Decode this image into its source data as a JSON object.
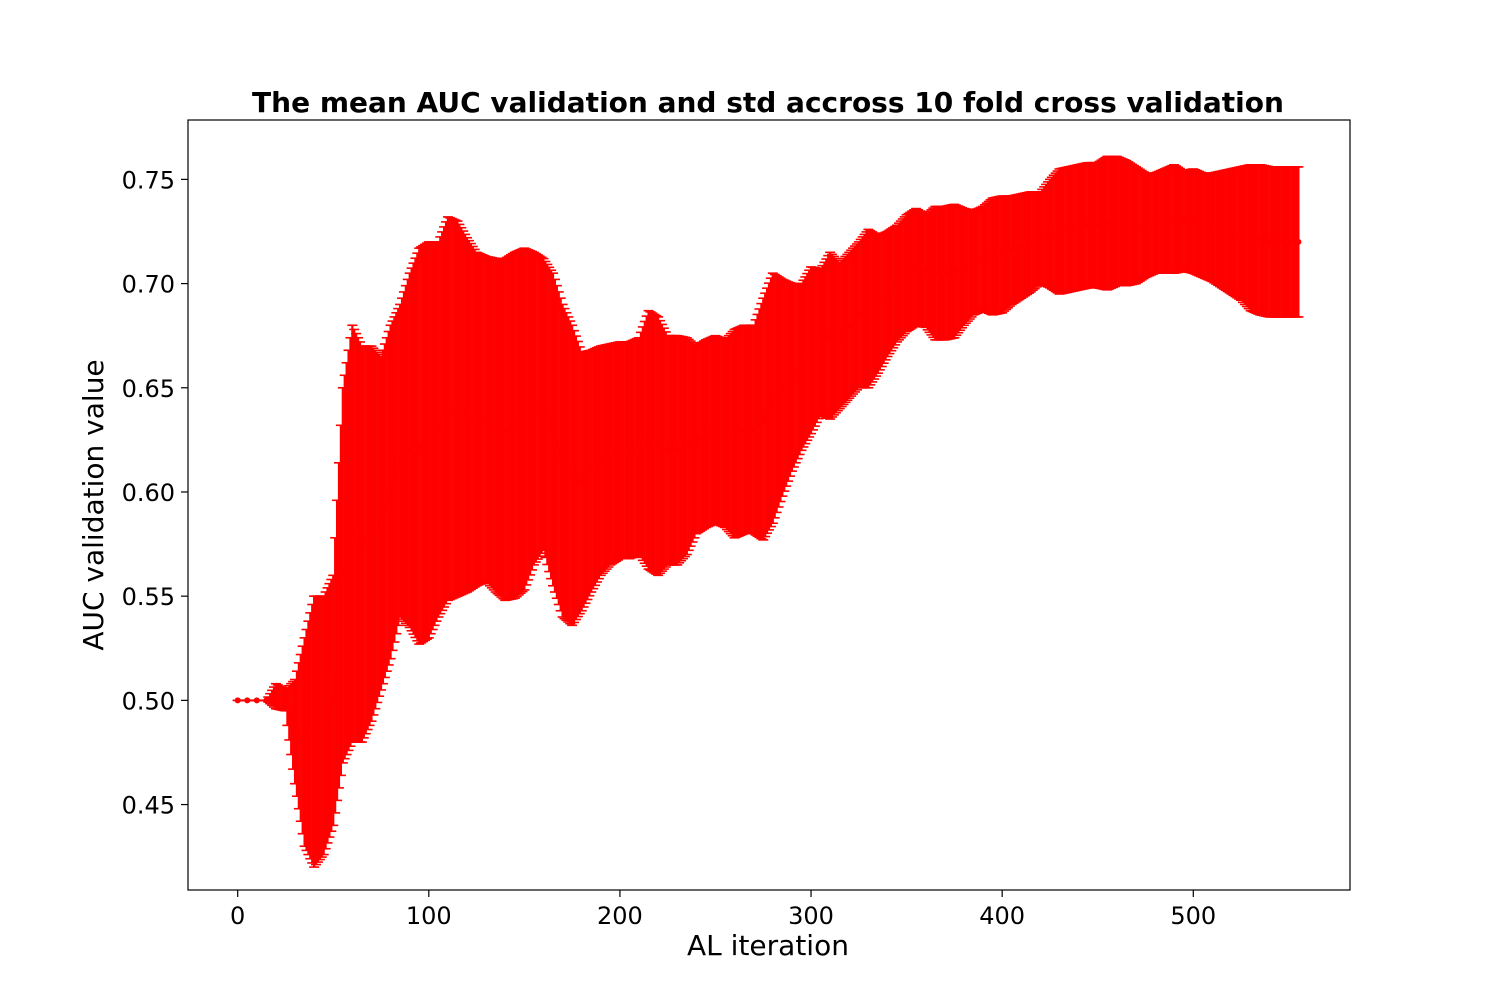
{
  "chart_data": {
    "type": "line",
    "title": "The mean AUC validation and std accross 10 fold cross validation",
    "xlabel": "AL iteration",
    "ylabel": "AUC validation value",
    "xlim": [
      -26,
      582
    ],
    "ylim": [
      0.409,
      0.7785
    ],
    "xticks": [
      0,
      100,
      200,
      300,
      400,
      500
    ],
    "yticks": [
      0.45,
      0.5,
      0.55,
      0.6,
      0.65,
      0.7,
      0.75
    ],
    "grid": false,
    "legend": "none",
    "color": "#ff0000",
    "error_style": "errorbar-with-caps",
    "series": [
      {
        "x": [
          0,
          5,
          10,
          15,
          20,
          25,
          30,
          35,
          40,
          45,
          50,
          55,
          60,
          65,
          70,
          75,
          80,
          85,
          90,
          95,
          100,
          105,
          110,
          115,
          120,
          125,
          130,
          135,
          140,
          145,
          150,
          155,
          160,
          165,
          170,
          175,
          180,
          185,
          190,
          195,
          200,
          205,
          210,
          215,
          220,
          225,
          230,
          235,
          240,
          245,
          250,
          255,
          260,
          265,
          270,
          275,
          280,
          285,
          290,
          295,
          300,
          305,
          310,
          315,
          320,
          325,
          330,
          335,
          340,
          345,
          350,
          355,
          360,
          365,
          370,
          375,
          380,
          385,
          390,
          395,
          400,
          405,
          410,
          415,
          420,
          425,
          430,
          435,
          440,
          445,
          450,
          455,
          460,
          465,
          470,
          475,
          480,
          485,
          490,
          495,
          500,
          505,
          510,
          515,
          520,
          525,
          530,
          535,
          540,
          545,
          550,
          555
        ],
        "mean": [
          0.5,
          0.5,
          0.5,
          0.5,
          0.502,
          0.5,
          0.485,
          0.48,
          0.485,
          0.488,
          0.5,
          0.56,
          0.58,
          0.575,
          0.58,
          0.585,
          0.6,
          0.615,
          0.62,
          0.622,
          0.625,
          0.63,
          0.64,
          0.64,
          0.637,
          0.635,
          0.635,
          0.632,
          0.63,
          0.632,
          0.635,
          0.64,
          0.642,
          0.63,
          0.615,
          0.608,
          0.605,
          0.61,
          0.615,
          0.618,
          0.62,
          0.62,
          0.622,
          0.625,
          0.622,
          0.62,
          0.62,
          0.622,
          0.625,
          0.628,
          0.63,
          0.628,
          0.628,
          0.63,
          0.63,
          0.635,
          0.645,
          0.65,
          0.655,
          0.66,
          0.668,
          0.672,
          0.675,
          0.675,
          0.68,
          0.685,
          0.688,
          0.69,
          0.695,
          0.7,
          0.705,
          0.708,
          0.706,
          0.705,
          0.705,
          0.706,
          0.708,
          0.71,
          0.712,
          0.713,
          0.714,
          0.716,
          0.718,
          0.72,
          0.722,
          0.724,
          0.725,
          0.726,
          0.727,
          0.728,
          0.728,
          0.729,
          0.73,
          0.729,
          0.728,
          0.728,
          0.729,
          0.73,
          0.731,
          0.73,
          0.73,
          0.728,
          0.727,
          0.726,
          0.725,
          0.724,
          0.722,
          0.721,
          0.72,
          0.72,
          0.72,
          0.72
        ],
        "std": [
          0.0,
          0.0,
          0.0,
          0.0,
          0.006,
          0.005,
          0.025,
          0.05,
          0.065,
          0.062,
          0.06,
          0.09,
          0.1,
          0.095,
          0.09,
          0.08,
          0.08,
          0.075,
          0.085,
          0.095,
          0.095,
          0.09,
          0.092,
          0.09,
          0.085,
          0.08,
          0.078,
          0.08,
          0.082,
          0.083,
          0.082,
          0.075,
          0.07,
          0.075,
          0.075,
          0.072,
          0.062,
          0.058,
          0.055,
          0.053,
          0.052,
          0.052,
          0.052,
          0.062,
          0.062,
          0.055,
          0.055,
          0.052,
          0.045,
          0.045,
          0.045,
          0.045,
          0.05,
          0.05,
          0.05,
          0.058,
          0.06,
          0.052,
          0.045,
          0.04,
          0.04,
          0.035,
          0.04,
          0.035,
          0.035,
          0.035,
          0.038,
          0.033,
          0.03,
          0.028,
          0.028,
          0.028,
          0.027,
          0.032,
          0.032,
          0.032,
          0.028,
          0.025,
          0.025,
          0.028,
          0.028,
          0.026,
          0.025,
          0.024,
          0.022,
          0.026,
          0.03,
          0.03,
          0.03,
          0.03,
          0.03,
          0.032,
          0.031,
          0.03,
          0.028,
          0.025,
          0.024,
          0.025,
          0.026,
          0.024,
          0.025,
          0.025,
          0.026,
          0.028,
          0.03,
          0.032,
          0.035,
          0.036,
          0.036,
          0.036,
          0.036,
          0.036
        ]
      }
    ]
  }
}
